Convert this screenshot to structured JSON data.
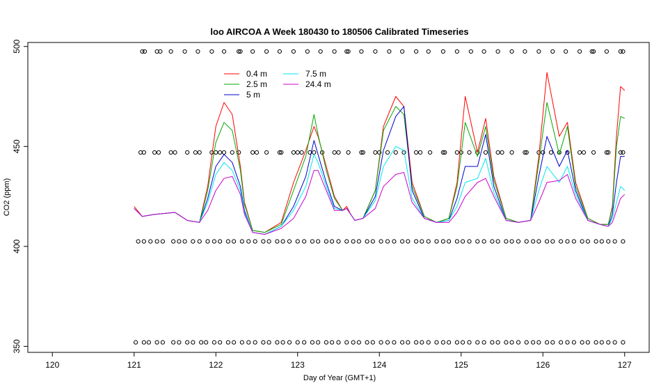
{
  "chart_data": {
    "type": "line",
    "title": "loo AIRCOA A  Week 180430 to 180506  Calibrated Timeseries",
    "xlabel": "Day of Year (GMT+1)",
    "ylabel": "CO2 (ppm)",
    "xlim": [
      119.7,
      127.3
    ],
    "ylim": [
      347,
      502
    ],
    "x_ticks": [
      120,
      121,
      122,
      123,
      124,
      125,
      126,
      127
    ],
    "y_ticks": [
      350,
      400,
      450,
      500
    ],
    "grid": false,
    "legend_position": "top-left",
    "series": [
      {
        "name": "0.4 m",
        "color": "#ff0000",
        "x": [
          121.0,
          121.1,
          121.25,
          121.5,
          121.65,
          121.8,
          121.9,
          122.0,
          122.1,
          122.2,
          122.3,
          122.35,
          122.45,
          122.6,
          122.8,
          122.95,
          123.1,
          123.2,
          123.25,
          123.35,
          123.45,
          123.55,
          123.6,
          123.65,
          123.7,
          123.8,
          123.95,
          124.05,
          124.2,
          124.3,
          124.4,
          124.55,
          124.7,
          124.85,
          124.95,
          125.05,
          125.2,
          125.3,
          125.4,
          125.55,
          125.7,
          125.85,
          125.95,
          126.05,
          126.2,
          126.3,
          126.4,
          126.55,
          126.7,
          126.8,
          126.85,
          126.9,
          126.95,
          127.0
        ],
        "y": [
          420,
          415,
          416,
          417,
          413,
          412,
          430,
          460,
          472,
          466,
          440,
          422,
          408,
          407,
          412,
          432,
          448,
          460,
          455,
          440,
          425,
          418,
          420,
          416,
          413,
          414,
          428,
          460,
          475,
          470,
          432,
          415,
          412,
          414,
          432,
          475,
          447,
          464,
          435,
          414,
          412,
          413,
          445,
          487,
          455,
          462,
          432,
          414,
          411,
          411,
          420,
          455,
          480,
          478
        ]
      },
      {
        "name": "2.5 m",
        "color": "#00aa00",
        "x": [
          121.0,
          121.1,
          121.25,
          121.5,
          121.65,
          121.8,
          121.9,
          122.0,
          122.1,
          122.2,
          122.3,
          122.35,
          122.45,
          122.6,
          122.8,
          122.95,
          123.1,
          123.2,
          123.25,
          123.35,
          123.45,
          123.55,
          123.6,
          123.65,
          123.7,
          123.8,
          123.95,
          124.05,
          124.2,
          124.3,
          124.4,
          124.55,
          124.7,
          124.85,
          124.95,
          125.05,
          125.2,
          125.3,
          125.4,
          125.55,
          125.7,
          125.85,
          125.95,
          126.05,
          126.2,
          126.3,
          126.4,
          126.55,
          126.7,
          126.8,
          126.85,
          126.9,
          126.95,
          127.0
        ],
        "y": [
          419,
          415,
          416,
          417,
          413,
          412,
          428,
          452,
          462,
          458,
          438,
          421,
          408,
          407,
          411,
          428,
          445,
          466,
          456,
          438,
          424,
          418,
          419,
          416,
          413,
          414,
          428,
          458,
          470,
          466,
          430,
          415,
          412,
          414,
          430,
          462,
          445,
          460,
          433,
          414,
          412,
          413,
          442,
          472,
          446,
          460,
          430,
          414,
          411,
          411,
          419,
          450,
          465,
          464
        ]
      },
      {
        "name": "5 m",
        "color": "#0000cc",
        "x": [
          121.0,
          121.1,
          121.25,
          121.5,
          121.65,
          121.8,
          121.9,
          122.0,
          122.1,
          122.2,
          122.3,
          122.35,
          122.45,
          122.6,
          122.8,
          122.95,
          123.1,
          123.2,
          123.25,
          123.35,
          123.45,
          123.55,
          123.6,
          123.65,
          123.7,
          123.8,
          123.95,
          124.05,
          124.2,
          124.3,
          124.4,
          124.55,
          124.7,
          124.85,
          124.95,
          125.05,
          125.2,
          125.3,
          125.4,
          125.55,
          125.7,
          125.85,
          125.95,
          126.05,
          126.2,
          126.3,
          126.4,
          126.55,
          126.7,
          126.8,
          126.85,
          126.9,
          126.95,
          127.0
        ],
        "y": [
          419,
          415,
          416,
          417,
          413,
          412,
          424,
          440,
          446,
          442,
          430,
          418,
          407,
          406,
          410,
          420,
          435,
          453,
          446,
          432,
          420,
          418,
          419,
          416,
          413,
          414,
          425,
          448,
          465,
          470,
          428,
          414,
          412,
          413,
          424,
          440,
          440,
          456,
          430,
          413,
          412,
          413,
          435,
          455,
          440,
          448,
          428,
          413,
          411,
          410,
          416,
          432,
          445,
          445
        ]
      },
      {
        "name": "7.5 m",
        "color": "#00e5ee",
        "x": [
          121.0,
          121.1,
          121.25,
          121.5,
          121.65,
          121.8,
          121.9,
          122.0,
          122.1,
          122.2,
          122.3,
          122.35,
          122.45,
          122.6,
          122.8,
          122.95,
          123.1,
          123.2,
          123.25,
          123.35,
          123.45,
          123.55,
          123.6,
          123.65,
          123.7,
          123.8,
          123.95,
          124.05,
          124.2,
          124.3,
          124.4,
          124.55,
          124.7,
          124.85,
          124.95,
          125.05,
          125.2,
          125.3,
          125.4,
          125.55,
          125.7,
          125.85,
          125.95,
          126.05,
          126.2,
          126.3,
          126.4,
          126.55,
          126.7,
          126.8,
          126.85,
          126.9,
          126.95,
          127.0
        ],
        "y": [
          419,
          415,
          416,
          417,
          413,
          412,
          422,
          436,
          442,
          438,
          428,
          417,
          407,
          406,
          410,
          418,
          430,
          446,
          442,
          430,
          419,
          418,
          419,
          416,
          413,
          414,
          423,
          440,
          450,
          448,
          424,
          414,
          412,
          413,
          420,
          432,
          434,
          444,
          427,
          413,
          412,
          413,
          428,
          440,
          432,
          440,
          426,
          413,
          411,
          410,
          414,
          422,
          430,
          428
        ]
      },
      {
        "name": "24.4 m",
        "color": "#cc00cc",
        "x": [
          121.0,
          121.1,
          121.25,
          121.5,
          121.65,
          121.8,
          121.9,
          122.0,
          122.1,
          122.2,
          122.3,
          122.35,
          122.45,
          122.6,
          122.8,
          122.95,
          123.1,
          123.2,
          123.25,
          123.35,
          123.45,
          123.55,
          123.6,
          123.65,
          123.7,
          123.8,
          123.95,
          124.05,
          124.2,
          124.3,
          124.4,
          124.55,
          124.7,
          124.85,
          124.95,
          125.05,
          125.2,
          125.3,
          125.4,
          125.55,
          125.7,
          125.85,
          125.95,
          126.05,
          126.2,
          126.3,
          126.4,
          126.55,
          126.7,
          126.8,
          126.85,
          126.9,
          126.95,
          127.0
        ],
        "y": [
          419,
          415,
          416,
          417,
          413,
          412,
          418,
          428,
          434,
          435,
          426,
          416,
          407,
          406,
          409,
          414,
          425,
          438,
          438,
          428,
          418,
          418,
          419,
          416,
          413,
          414,
          419,
          430,
          436,
          437,
          422,
          414,
          412,
          412,
          417,
          425,
          432,
          434,
          425,
          413,
          412,
          413,
          422,
          432,
          433,
          436,
          424,
          413,
          411,
          410,
          412,
          418,
          424,
          426
        ]
      }
    ],
    "reference_points": [
      {
        "y": 497.5,
        "x": [
          121.1,
          121.13,
          121.28,
          121.32,
          121.45,
          121.62,
          121.78,
          121.95,
          122.1,
          122.28,
          122.3,
          122.45,
          122.62,
          122.78,
          122.95,
          123.12,
          123.28,
          123.45,
          123.6,
          123.62,
          123.78,
          123.95,
          124.12,
          124.28,
          124.45,
          124.6,
          124.78,
          124.95,
          125.12,
          125.28,
          125.45,
          125.62,
          125.78,
          125.95,
          126.12,
          126.28,
          126.45,
          126.6,
          126.62,
          126.78,
          126.95,
          126.98
        ]
      },
      {
        "y": 447,
        "x": [
          121.08,
          121.12,
          121.25,
          121.3,
          121.45,
          121.5,
          121.65,
          121.75,
          121.8,
          121.95,
          122.0,
          122.05,
          122.1,
          122.2,
          122.28,
          122.45,
          122.5,
          122.62,
          122.78,
          122.8,
          122.95,
          123.0,
          123.05,
          123.15,
          123.2,
          123.3,
          123.45,
          123.5,
          123.62,
          123.78,
          123.8,
          123.95,
          124.0,
          124.1,
          124.2,
          124.3,
          124.45,
          124.5,
          124.62,
          124.78,
          124.8,
          124.95,
          125.0,
          125.1,
          125.2,
          125.3,
          125.45,
          125.5,
          125.62,
          125.78,
          125.8,
          125.95,
          126.0,
          126.1,
          126.2,
          126.3,
          126.45,
          126.5,
          126.62,
          126.78,
          126.8,
          126.95,
          126.98
        ]
      },
      {
        "y": 402.5,
        "x": [
          121.05,
          121.12,
          121.2,
          121.28,
          121.35,
          121.48,
          121.55,
          121.62,
          121.72,
          121.8,
          121.9,
          121.98,
          122.05,
          122.15,
          122.22,
          122.32,
          122.4,
          122.48,
          122.58,
          122.65,
          122.75,
          122.82,
          122.9,
          123.0,
          123.08,
          123.18,
          123.25,
          123.35,
          123.42,
          123.5,
          123.6,
          123.68,
          123.75,
          123.85,
          123.92,
          124.02,
          124.1,
          124.18,
          124.28,
          124.35,
          124.45,
          124.52,
          124.6,
          124.7,
          124.78,
          124.85,
          124.95,
          125.02,
          125.1,
          125.2,
          125.28,
          125.38,
          125.45,
          125.55,
          125.62,
          125.7,
          125.8,
          125.88,
          125.95,
          126.05,
          126.12,
          126.22,
          126.3,
          126.38,
          126.48,
          126.55,
          126.65,
          126.72,
          126.8,
          126.88,
          126.98
        ]
      },
      {
        "y": 352,
        "x": [
          121.02,
          121.12,
          121.18,
          121.28,
          121.35,
          121.48,
          121.55,
          121.65,
          121.72,
          121.82,
          121.88,
          121.98,
          122.05,
          122.15,
          122.22,
          122.32,
          122.4,
          122.48,
          122.58,
          122.65,
          122.75,
          122.82,
          122.9,
          123.0,
          123.08,
          123.18,
          123.25,
          123.35,
          123.42,
          123.5,
          123.6,
          123.68,
          123.75,
          123.85,
          123.92,
          124.02,
          124.1,
          124.18,
          124.28,
          124.35,
          124.45,
          124.52,
          124.6,
          124.7,
          124.78,
          124.85,
          124.95,
          125.02,
          125.1,
          125.2,
          125.28,
          125.38,
          125.45,
          125.55,
          125.62,
          125.7,
          125.8,
          125.88,
          125.95,
          126.05,
          126.12,
          126.22,
          126.3,
          126.38,
          126.48,
          126.55,
          126.65,
          126.72,
          126.8,
          126.88,
          126.98
        ]
      }
    ]
  }
}
